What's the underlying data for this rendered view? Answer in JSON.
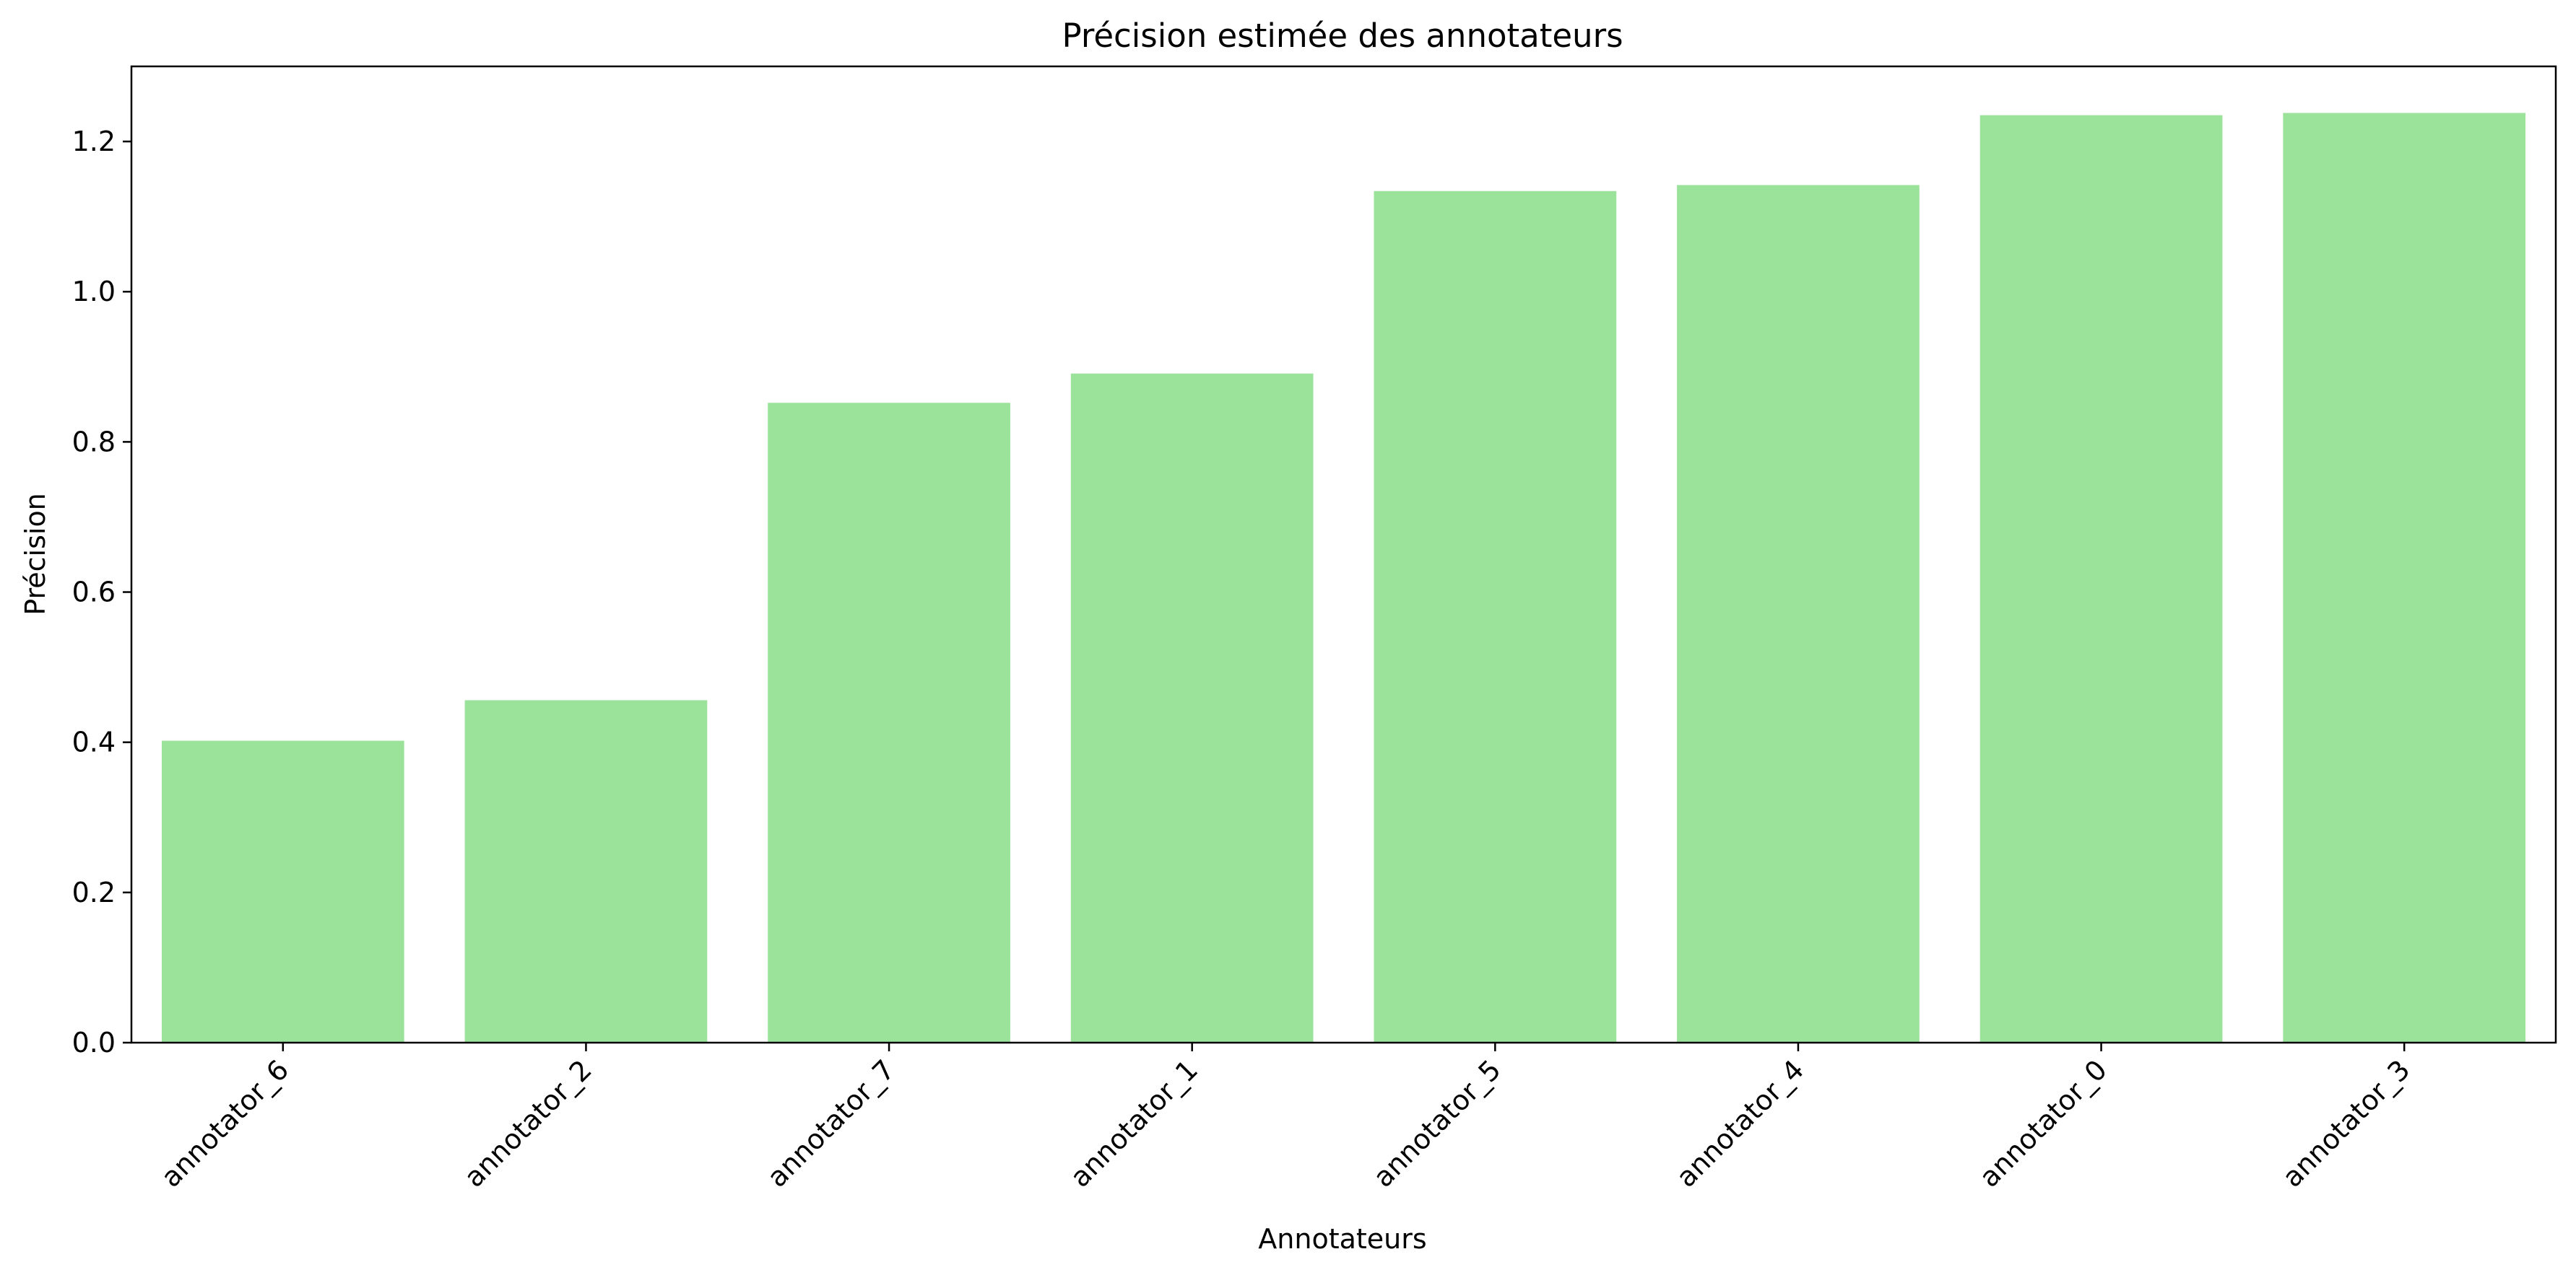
{
  "chart_data": {
    "type": "bar",
    "title": "Précision estimée des annotateurs",
    "xlabel": "Annotateurs",
    "ylabel": "Précision",
    "categories": [
      "annotator_6",
      "annotator_2",
      "annotator_7",
      "annotator_1",
      "annotator_5",
      "annotator_4",
      "annotator_0",
      "annotator_3"
    ],
    "values": [
      0.402,
      0.456,
      0.852,
      0.891,
      1.134,
      1.142,
      1.235,
      1.238
    ],
    "ylim": [
      0,
      1.3
    ],
    "yticks": [
      0.0,
      0.2,
      0.4,
      0.6,
      0.8,
      1.0,
      1.2
    ],
    "ytick_labels": [
      "0.0",
      "0.2",
      "0.4",
      "0.6",
      "0.8",
      "1.0",
      "1.2"
    ],
    "xtick_rotation_deg": 45,
    "bar_color": "#9be29b",
    "grid": false,
    "legend": "none"
  }
}
